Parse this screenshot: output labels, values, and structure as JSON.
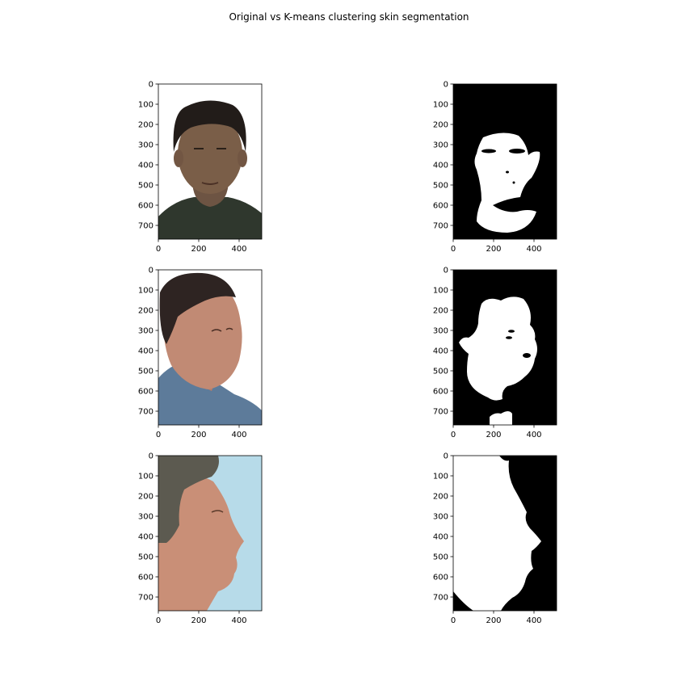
{
  "title": "Original vs K-means clustering skin segmentation",
  "chart_data": {
    "type": "image-grid",
    "title": "Original vs K-means clustering skin segmentation",
    "rows": 3,
    "cols": 2,
    "xlim": [
      0,
      512
    ],
    "ylim": [
      768,
      0
    ],
    "xticks": [
      0,
      200,
      400
    ],
    "yticks": [
      0,
      100,
      200,
      300,
      400,
      500,
      600,
      700
    ],
    "panels": [
      {
        "row": 0,
        "col": 0,
        "kind": "photo",
        "subject": "frontal face, dark hair"
      },
      {
        "row": 0,
        "col": 1,
        "kind": "mask",
        "subject": "skin mask of frontal face"
      },
      {
        "row": 1,
        "col": 0,
        "kind": "photo",
        "subject": "three-quarter face, denim shirt"
      },
      {
        "row": 1,
        "col": 1,
        "kind": "mask",
        "subject": "skin mask of three-quarter face"
      },
      {
        "row": 2,
        "col": 0,
        "kind": "photo",
        "subject": "profile face, grey hair, light blue background"
      },
      {
        "row": 2,
        "col": 1,
        "kind": "mask",
        "subject": "skin mask of profile face"
      }
    ]
  },
  "colors": {
    "photo_background": "#ffffff",
    "mask_background": "#000000",
    "mask_foreground": "#ffffff",
    "profile_background": "#b7dbe9"
  }
}
